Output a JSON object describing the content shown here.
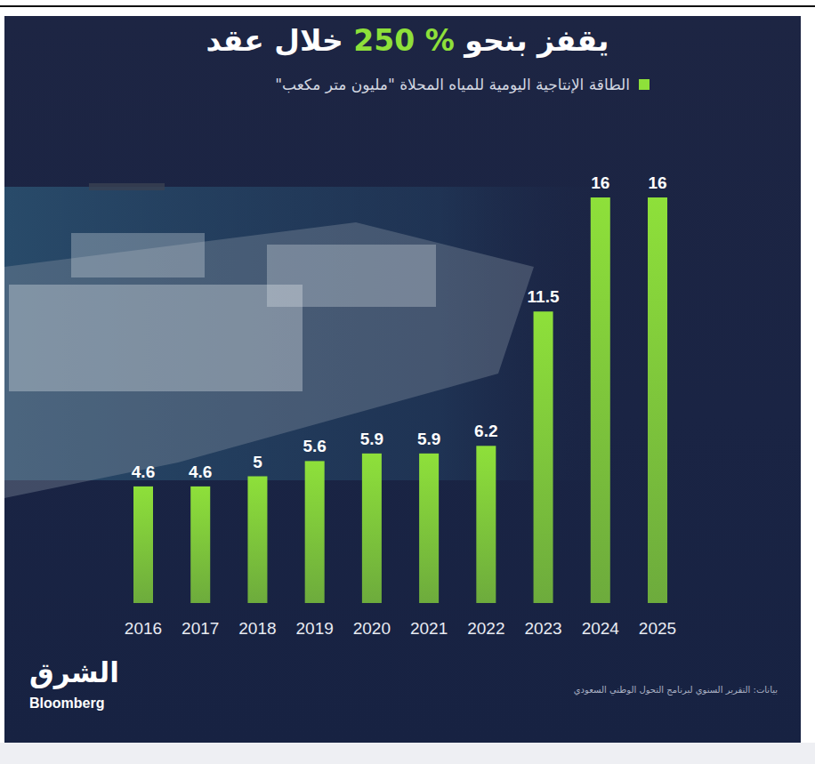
{
  "chart_data": {
    "type": "bar",
    "title": "يقفز بنحو 250 % خلال عقد",
    "categories": [
      "2016",
      "2017",
      "2018",
      "2019",
      "2020",
      "2021",
      "2022",
      "2023",
      "2024",
      "2025"
    ],
    "series": [
      {
        "name": "الطاقة الإنتاجية اليومية للمياه المحلاة \"مليون متر مكعب\"",
        "color": "#8ee03a",
        "values": [
          4.6,
          4.6,
          5,
          5.6,
          5.9,
          5.9,
          6.2,
          11.5,
          16,
          16
        ]
      }
    ],
    "ylim": [
      0,
      16
    ],
    "grid": false,
    "data_labels": true,
    "tick_labels": "x",
    "legend": "top",
    "source": "بيانات: التقرير السنوي لبرنامج التحول الوطني السعودي",
    "logo": "الشرق",
    "logo_subtext": "Bloomberg"
  }
}
